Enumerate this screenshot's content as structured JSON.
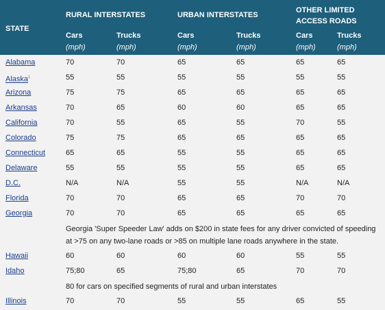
{
  "header": {
    "state": "STATE",
    "groups": [
      {
        "label": "RURAL INTERSTATES"
      },
      {
        "label": "URBAN INTERSTATES"
      },
      {
        "label": "OTHER LIMITED ACCESS ROADS"
      }
    ],
    "columns": [
      {
        "label": "Cars",
        "unit": "(mph)"
      },
      {
        "label": "Trucks",
        "unit": "(mph)"
      },
      {
        "label": "Cars",
        "unit": "(mph)"
      },
      {
        "label": "Trucks",
        "unit": "(mph)"
      },
      {
        "label": "Cars",
        "unit": "(mph)"
      },
      {
        "label": "Trucks",
        "unit": "(mph)"
      }
    ]
  },
  "rows": [
    {
      "state": "Alabama",
      "values": [
        "70",
        "70",
        "65",
        "65",
        "65",
        "65"
      ]
    },
    {
      "state": "Alaska",
      "footnote": "1",
      "values": [
        "55",
        "55",
        "55",
        "55",
        "55",
        "55"
      ]
    },
    {
      "state": "Arizona",
      "values": [
        "75",
        "75",
        "65",
        "65",
        "65",
        "65"
      ]
    },
    {
      "state": "Arkansas",
      "values": [
        "70",
        "65",
        "60",
        "60",
        "65",
        "65"
      ]
    },
    {
      "state": "California",
      "values": [
        "70",
        "55",
        "65",
        "55",
        "70",
        "55"
      ]
    },
    {
      "state": "Colorado",
      "values": [
        "75",
        "75",
        "65",
        "65",
        "65",
        "65"
      ]
    },
    {
      "state": "Connecticut",
      "values": [
        "65",
        "65",
        "55",
        "55",
        "65",
        "65"
      ]
    },
    {
      "state": "Delaware",
      "values": [
        "55",
        "55",
        "55",
        "55",
        "65",
        "65"
      ]
    },
    {
      "state": "D.C.",
      "values": [
        "N/A",
        "N/A",
        "55",
        "55",
        "N/A",
        "N/A"
      ]
    },
    {
      "state": "Florida",
      "values": [
        "70",
        "70",
        "65",
        "65",
        "70",
        "70"
      ]
    },
    {
      "state": "Georgia",
      "values": [
        "70",
        "70",
        "65",
        "65",
        "65",
        "65"
      ]
    },
    {
      "note": "Georgia 'Super Speeder Law' adds on $200 in state fees for any driver convicted of speeding at >75 on any two-lane roads or >85 on multiple lane roads anywhere in the state."
    },
    {
      "state": "Hawaii",
      "values": [
        "60",
        "60",
        "60",
        "60",
        "55",
        "55"
      ]
    },
    {
      "state": "Idaho",
      "values": [
        "75;80",
        "65",
        "75;80",
        "65",
        "70",
        "70"
      ]
    },
    {
      "note": "80 for cars on specified segments of rural and urban interstates"
    },
    {
      "state": "Illinois",
      "values": [
        "70",
        "70",
        "55",
        "55",
        "65",
        "55"
      ]
    }
  ]
}
